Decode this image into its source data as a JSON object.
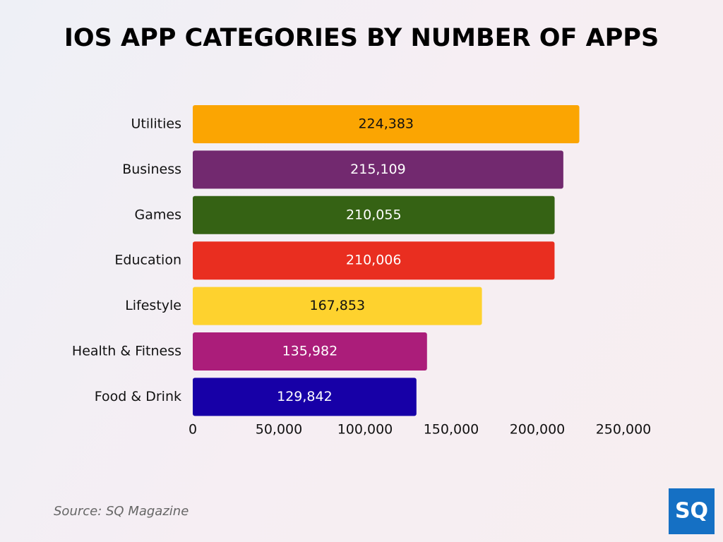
{
  "chart_data": {
    "type": "bar",
    "orientation": "horizontal",
    "title": "IOS APP CATEGORIES BY NUMBER OF APPS",
    "categories": [
      "Utilities",
      "Business",
      "Games",
      "Education",
      "Lifestyle",
      "Health & Fitness",
      "Food & Drink"
    ],
    "values": [
      224383,
      215109,
      210055,
      210006,
      167853,
      135982,
      129842
    ],
    "value_labels": [
      "224,383",
      "215,109",
      "210,055",
      "210,006",
      "167,853",
      "135,982",
      "129,842"
    ],
    "colors": [
      "#fba502",
      "#72296f",
      "#356214",
      "#e92e20",
      "#fed22e",
      "#ab1d7a",
      "#1700a7"
    ],
    "xlim": [
      0,
      250000
    ],
    "xticks": [
      0,
      {
        "value": 50000,
        "label": "50,000"
      },
      {
        "value": 100000,
        "label": "100,000"
      },
      {
        "value": 150000,
        "label": "150,000"
      },
      {
        "value": 200000,
        "label": "200,000"
      },
      {
        "value": 250000,
        "label": "250,000"
      }
    ],
    "grid": false
  },
  "source": "Source: SQ Magazine",
  "logo": "SQ"
}
